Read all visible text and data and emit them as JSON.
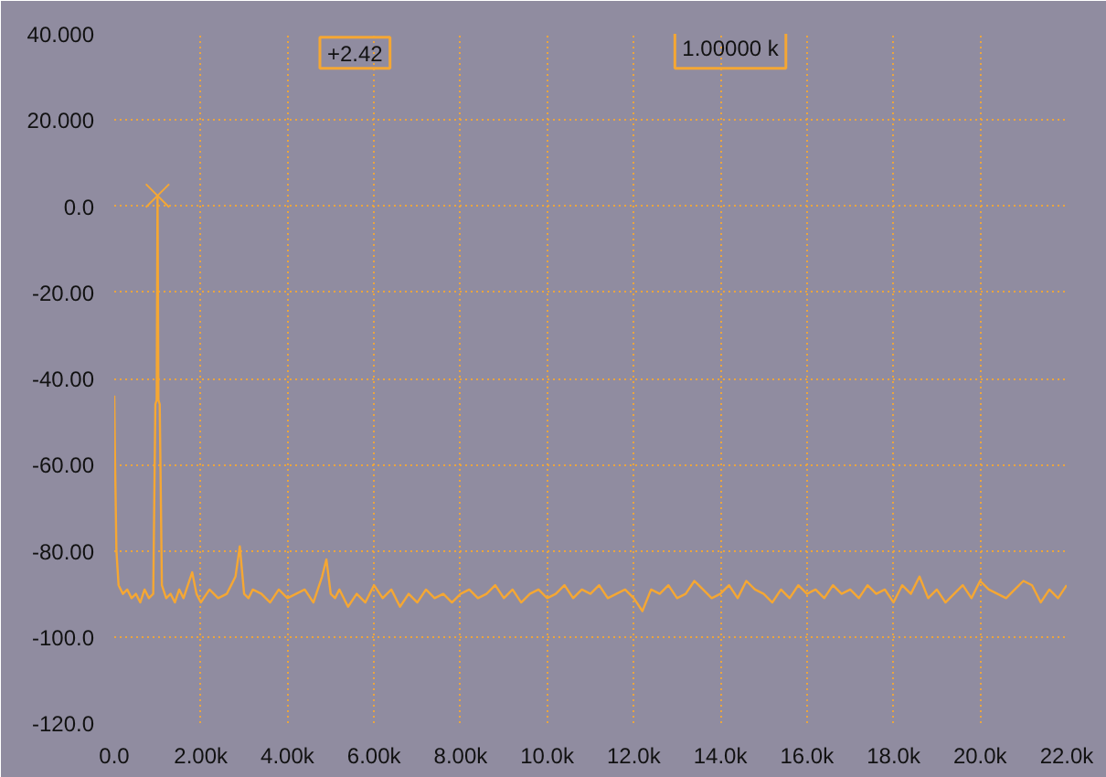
{
  "chart_data": {
    "type": "line",
    "annotations": [
      "+2.42",
      "1.00000 k"
    ],
    "xlim": [
      0,
      22000
    ],
    "ylim": [
      -120,
      40
    ],
    "xticks": [
      {
        "value": 0,
        "label": "0.0"
      },
      {
        "value": 2000,
        "label": "2.00k"
      },
      {
        "value": 4000,
        "label": "4.00k"
      },
      {
        "value": 6000,
        "label": "6.00k"
      },
      {
        "value": 8000,
        "label": "8.00k"
      },
      {
        "value": 10000,
        "label": "10.0k"
      },
      {
        "value": 12000,
        "label": "12.0k"
      },
      {
        "value": 14000,
        "label": "14.0k"
      },
      {
        "value": 16000,
        "label": "16.0k"
      },
      {
        "value": 18000,
        "label": "18.0k"
      },
      {
        "value": 20000,
        "label": "20.0k"
      },
      {
        "value": 22000,
        "label": "22.0k"
      }
    ],
    "yticks": [
      {
        "value": 40,
        "label": "40.000"
      },
      {
        "value": 20,
        "label": "20.000"
      },
      {
        "value": 0,
        "label": "0.0"
      },
      {
        "value": -20,
        "label": "-20.00"
      },
      {
        "value": -40,
        "label": "-40.00"
      },
      {
        "value": -60,
        "label": "-60.00"
      },
      {
        "value": -80,
        "label": "-80.00"
      },
      {
        "value": -100,
        "label": "-100.0"
      },
      {
        "value": -120,
        "label": "-120.0"
      }
    ],
    "grid": true,
    "line_style": "solid",
    "series": [
      {
        "color": "#f5a733",
        "x": [
          0,
          20,
          50,
          100,
          200,
          300,
          400,
          500,
          600,
          700,
          800,
          900,
          950,
          980,
          1000,
          1020,
          1050,
          1100,
          1200,
          1300,
          1400,
          1500,
          1600,
          1700,
          1800,
          1900,
          2000,
          2200,
          2400,
          2600,
          2800,
          2900,
          3000,
          3100,
          3200,
          3400,
          3600,
          3800,
          4000,
          4200,
          4400,
          4600,
          4800,
          4900,
          5000,
          5100,
          5200,
          5400,
          5600,
          5800,
          6000,
          6200,
          6400,
          6600,
          6800,
          7000,
          7200,
          7400,
          7600,
          7800,
          8000,
          8200,
          8400,
          8600,
          8800,
          9000,
          9200,
          9400,
          9600,
          9800,
          10000,
          10200,
          10400,
          10600,
          10800,
          11000,
          11200,
          11400,
          11600,
          11800,
          12000,
          12200,
          12400,
          12600,
          12800,
          13000,
          13200,
          13400,
          13600,
          13800,
          14000,
          14200,
          14400,
          14600,
          14800,
          15000,
          15200,
          15400,
          15600,
          15800,
          16000,
          16200,
          16400,
          16600,
          16800,
          17000,
          17200,
          17400,
          17600,
          17800,
          18000,
          18200,
          18400,
          18600,
          18800,
          19000,
          19200,
          19400,
          19600,
          19800,
          20000,
          20200,
          20400,
          20600,
          20800,
          21000,
          21200,
          21400,
          21600,
          21800,
          22000
        ],
        "values": [
          -44,
          -60,
          -80,
          -88,
          -90,
          -89,
          -91,
          -90,
          -92,
          -89,
          -91,
          -90,
          -46,
          -45,
          2.42,
          -45,
          -46,
          -88,
          -91,
          -90,
          -92,
          -89,
          -91,
          -88,
          -85,
          -90,
          -92,
          -89,
          -91,
          -90,
          -86,
          -79,
          -90,
          -91,
          -89,
          -90,
          -92,
          -89,
          -91,
          -90,
          -89,
          -92,
          -86,
          -82,
          -90,
          -91,
          -89,
          -93,
          -90,
          -92,
          -88,
          -91,
          -89,
          -93,
          -90,
          -92,
          -89,
          -91,
          -90,
          -92,
          -90,
          -89,
          -91,
          -90,
          -88,
          -91,
          -89,
          -92,
          -90,
          -89,
          -91,
          -90,
          -88,
          -91,
          -89,
          -90,
          -88,
          -91,
          -90,
          -89,
          -91,
          -94,
          -89,
          -90,
          -88,
          -91,
          -90,
          -87,
          -89,
          -91,
          -90,
          -88,
          -91,
          -87,
          -89,
          -90,
          -92,
          -89,
          -91,
          -88,
          -90,
          -89,
          -91,
          -88,
          -90,
          -89,
          -91,
          -88,
          -90,
          -89,
          -92,
          -88,
          -90,
          -86,
          -91,
          -89,
          -92,
          -90,
          -88,
          -91,
          -87,
          -89,
          -90,
          -91,
          -89,
          -87,
          -88,
          -92,
          -89,
          -91,
          -88
        ]
      },
      {
        "type": "scatter",
        "marker": "cross",
        "color": "#f5a733",
        "x": [
          1000
        ],
        "values": [
          2.42
        ]
      }
    ]
  }
}
